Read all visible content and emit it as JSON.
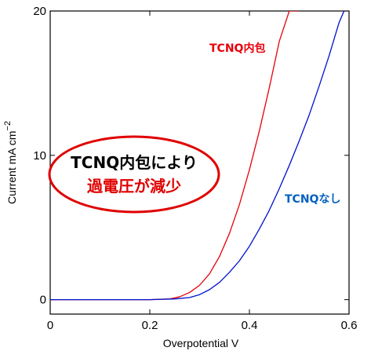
{
  "chart_data": {
    "type": "line",
    "xlabel": "Overpotential V",
    "ylabel": "Current mA cm",
    "ylabel_superscript": "−2",
    "xlim": [
      0,
      0.6
    ],
    "ylim": [
      -1,
      20
    ],
    "xticks": [
      0,
      0.2,
      0.4,
      0.6
    ],
    "xtick_labels": [
      "0",
      "0.2",
      "0.4",
      "0.6"
    ],
    "yticks": [
      0,
      10,
      20
    ],
    "ytick_labels": [
      "0",
      "10",
      "20"
    ],
    "grid": false,
    "series": [
      {
        "name": "TCNQ内包",
        "color": "#e8000b",
        "x": [
          0,
          0.2,
          0.24,
          0.26,
          0.28,
          0.3,
          0.32,
          0.34,
          0.36,
          0.38,
          0.4,
          0.42,
          0.44,
          0.46,
          0.48,
          0.5
        ],
        "y": [
          0,
          0,
          0.05,
          0.2,
          0.5,
          1.0,
          1.8,
          3.0,
          4.6,
          6.6,
          9.0,
          11.7,
          14.7,
          17.9,
          20.0,
          20.0
        ]
      },
      {
        "name": "TCNQなし",
        "color": "#0010d0",
        "x": [
          0,
          0.2,
          0.25,
          0.28,
          0.3,
          0.32,
          0.34,
          0.36,
          0.38,
          0.4,
          0.42,
          0.44,
          0.46,
          0.48,
          0.5,
          0.52,
          0.54,
          0.56,
          0.58,
          0.59
        ],
        "y": [
          0,
          0,
          0.05,
          0.15,
          0.35,
          0.7,
          1.2,
          1.9,
          2.7,
          3.7,
          4.9,
          6.2,
          7.7,
          9.3,
          11.0,
          12.8,
          14.8,
          16.9,
          19.2,
          20.0
        ]
      }
    ],
    "annotations": {
      "red_label": "TCNQ内包",
      "blue_label": "TCNQなし",
      "callout_line1": "TCNQ内包により",
      "callout_line2": "過電圧が減少"
    }
  }
}
